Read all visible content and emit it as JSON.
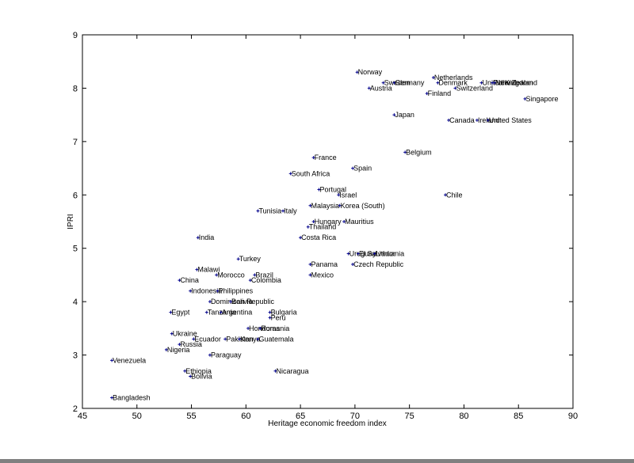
{
  "chart_data": {
    "type": "scatter",
    "title": "",
    "xlabel": "Heritage economic freedom index",
    "ylabel": "IPRI",
    "xlim": [
      45,
      90
    ],
    "ylim": [
      2,
      9
    ],
    "xticks": [
      45,
      50,
      55,
      60,
      65,
      70,
      75,
      80,
      85,
      90
    ],
    "yticks": [
      2,
      3,
      4,
      5,
      6,
      7,
      8,
      9
    ],
    "grid": false,
    "marker_color": "#00008b",
    "points": [
      {
        "label": "Norway",
        "x": 70.2,
        "y": 8.3
      },
      {
        "label": "Netherlands",
        "x": 77.2,
        "y": 8.2
      },
      {
        "label": "Sweden",
        "x": 72.6,
        "y": 8.1
      },
      {
        "label": "Germany",
        "x": 73.6,
        "y": 8.1
      },
      {
        "label": "Denmark",
        "x": 77.6,
        "y": 8.1
      },
      {
        "label": "United Kingdom",
        "x": 81.6,
        "y": 8.1
      },
      {
        "label": "Finland",
        "x": 82.6,
        "y": 8.1
      },
      {
        "label": "New Zealand",
        "x": 82.8,
        "y": 8.1
      },
      {
        "label": "Austria",
        "x": 71.3,
        "y": 8.0
      },
      {
        "label": "Switzerland",
        "x": 79.2,
        "y": 8.0
      },
      {
        "label": "Finland",
        "x": 76.6,
        "y": 7.9
      },
      {
        "label": "Singapore",
        "x": 85.6,
        "y": 7.8
      },
      {
        "label": "Japan",
        "x": 73.6,
        "y": 7.5
      },
      {
        "label": "Canada",
        "x": 78.6,
        "y": 7.4
      },
      {
        "label": "Ireland",
        "x": 81.2,
        "y": 7.4
      },
      {
        "label": "United States",
        "x": 82.2,
        "y": 7.4
      },
      {
        "label": "Belgium",
        "x": 74.6,
        "y": 6.8
      },
      {
        "label": "France",
        "x": 66.2,
        "y": 6.7
      },
      {
        "label": "Spain",
        "x": 69.8,
        "y": 6.5
      },
      {
        "label": "South Africa",
        "x": 64.1,
        "y": 6.4
      },
      {
        "label": "Portugal",
        "x": 66.7,
        "y": 6.1
      },
      {
        "label": "Israel",
        "x": 68.5,
        "y": 6.0
      },
      {
        "label": "Chile",
        "x": 78.3,
        "y": 6.0
      },
      {
        "label": "Malaysia",
        "x": 65.9,
        "y": 5.8
      },
      {
        "label": "Korea (South)",
        "x": 68.6,
        "y": 5.8
      },
      {
        "label": "Tunisia",
        "x": 61.1,
        "y": 5.7
      },
      {
        "label": "Italy",
        "x": 63.4,
        "y": 5.7
      },
      {
        "label": "Hungary",
        "x": 66.2,
        "y": 5.5
      },
      {
        "label": "Mauritius",
        "x": 69.0,
        "y": 5.5
      },
      {
        "label": "Thailand",
        "x": 65.7,
        "y": 5.4
      },
      {
        "label": "India",
        "x": 55.6,
        "y": 5.2
      },
      {
        "label": "Costa Rica",
        "x": 65.0,
        "y": 5.2
      },
      {
        "label": "Uruguay",
        "x": 69.4,
        "y": 4.9
      },
      {
        "label": "El Salvador",
        "x": 70.3,
        "y": 4.9
      },
      {
        "label": "Lithuania",
        "x": 71.8,
        "y": 4.9
      },
      {
        "label": "Turkey",
        "x": 59.3,
        "y": 4.8
      },
      {
        "label": "Panama",
        "x": 65.9,
        "y": 4.7
      },
      {
        "label": "Czech Republic",
        "x": 69.8,
        "y": 4.7
      },
      {
        "label": "Malawi",
        "x": 55.5,
        "y": 4.6
      },
      {
        "label": "Morocco",
        "x": 57.3,
        "y": 4.5
      },
      {
        "label": "Brazil",
        "x": 60.8,
        "y": 4.5
      },
      {
        "label": "Mexico",
        "x": 65.9,
        "y": 4.5
      },
      {
        "label": "China",
        "x": 53.9,
        "y": 4.4
      },
      {
        "label": "Colombia",
        "x": 60.4,
        "y": 4.4
      },
      {
        "label": "Indonesia",
        "x": 54.9,
        "y": 4.2
      },
      {
        "label": "Philippines",
        "x": 57.4,
        "y": 4.2
      },
      {
        "label": "Dominican Republic",
        "x": 56.7,
        "y": 4.0
      },
      {
        "label": "Bolivia",
        "x": 58.6,
        "y": 4.0
      },
      {
        "label": "Egypt",
        "x": 53.1,
        "y": 3.8
      },
      {
        "label": "Tanzania",
        "x": 56.4,
        "y": 3.8
      },
      {
        "label": "Argentina",
        "x": 57.7,
        "y": 3.8
      },
      {
        "label": "Bulgaria",
        "x": 62.2,
        "y": 3.8
      },
      {
        "label": "Peru",
        "x": 62.2,
        "y": 3.7
      },
      {
        "label": "Honduras",
        "x": 60.2,
        "y": 3.5
      },
      {
        "label": "Romania",
        "x": 61.3,
        "y": 3.5
      },
      {
        "label": "Ukraine",
        "x": 53.2,
        "y": 3.4
      },
      {
        "label": "Ecuador",
        "x": 55.2,
        "y": 3.3
      },
      {
        "label": "Pakistan",
        "x": 58.1,
        "y": 3.3
      },
      {
        "label": "Kenya",
        "x": 59.4,
        "y": 3.3
      },
      {
        "label": "Guatemala",
        "x": 61.1,
        "y": 3.3
      },
      {
        "label": "Russia",
        "x": 53.9,
        "y": 3.2
      },
      {
        "label": "Nigeria",
        "x": 52.7,
        "y": 3.1
      },
      {
        "label": "Paraguay",
        "x": 56.7,
        "y": 3.0
      },
      {
        "label": "Venezuela",
        "x": 47.7,
        "y": 2.9
      },
      {
        "label": "Ethiopia",
        "x": 54.4,
        "y": 2.7
      },
      {
        "label": "Nicaragua",
        "x": 62.7,
        "y": 2.7
      },
      {
        "label": "Bolivia",
        "x": 54.9,
        "y": 2.6
      },
      {
        "label": "Bangladesh",
        "x": 47.7,
        "y": 2.2
      }
    ]
  }
}
